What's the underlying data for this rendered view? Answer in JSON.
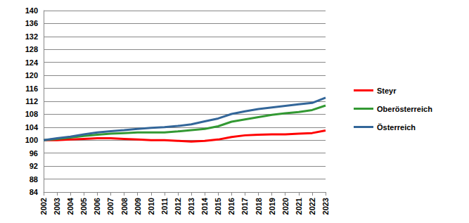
{
  "chart_data": {
    "type": "line",
    "categories": [
      "2002",
      "2003",
      "2004",
      "2005",
      "2006",
      "2007",
      "2008",
      "2009",
      "2010",
      "2011",
      "2012",
      "2013",
      "2014",
      "2015",
      "2016",
      "2017",
      "2018",
      "2019",
      "2020",
      "2021",
      "2022",
      "2023"
    ],
    "series": [
      {
        "name": "Steyr",
        "color": "#ff0000",
        "values": [
          100,
          100,
          100.2,
          100.4,
          100.6,
          100.6,
          100.4,
          100.2,
          100,
          100,
          99.8,
          99.6,
          99.8,
          100.2,
          101,
          101.5,
          101.7,
          101.8,
          101.8,
          102,
          102.2,
          103
        ]
      },
      {
        "name": "Oberösterreich",
        "color": "#339933",
        "values": [
          100,
          100.4,
          100.8,
          101.3,
          101.7,
          102,
          102.2,
          102.4,
          102.4,
          102.4,
          102.7,
          103.1,
          103.5,
          104.3,
          105.7,
          106.4,
          107.1,
          107.8,
          108.3,
          108.7,
          109.3,
          110.7
        ]
      },
      {
        "name": "Österreich",
        "color": "#336699",
        "values": [
          100,
          100.6,
          101.1,
          101.8,
          102.4,
          102.8,
          103.1,
          103.5,
          103.8,
          104,
          104.4,
          104.9,
          105.8,
          106.7,
          108.1,
          108.9,
          109.6,
          110.1,
          110.6,
          111.1,
          111.5,
          113.1
        ]
      }
    ],
    "ylim": [
      84,
      140
    ],
    "yticks": [
      84,
      88,
      92,
      96,
      100,
      104,
      108,
      112,
      116,
      120,
      124,
      128,
      132,
      136,
      140
    ],
    "grid": true,
    "legend": "right"
  }
}
